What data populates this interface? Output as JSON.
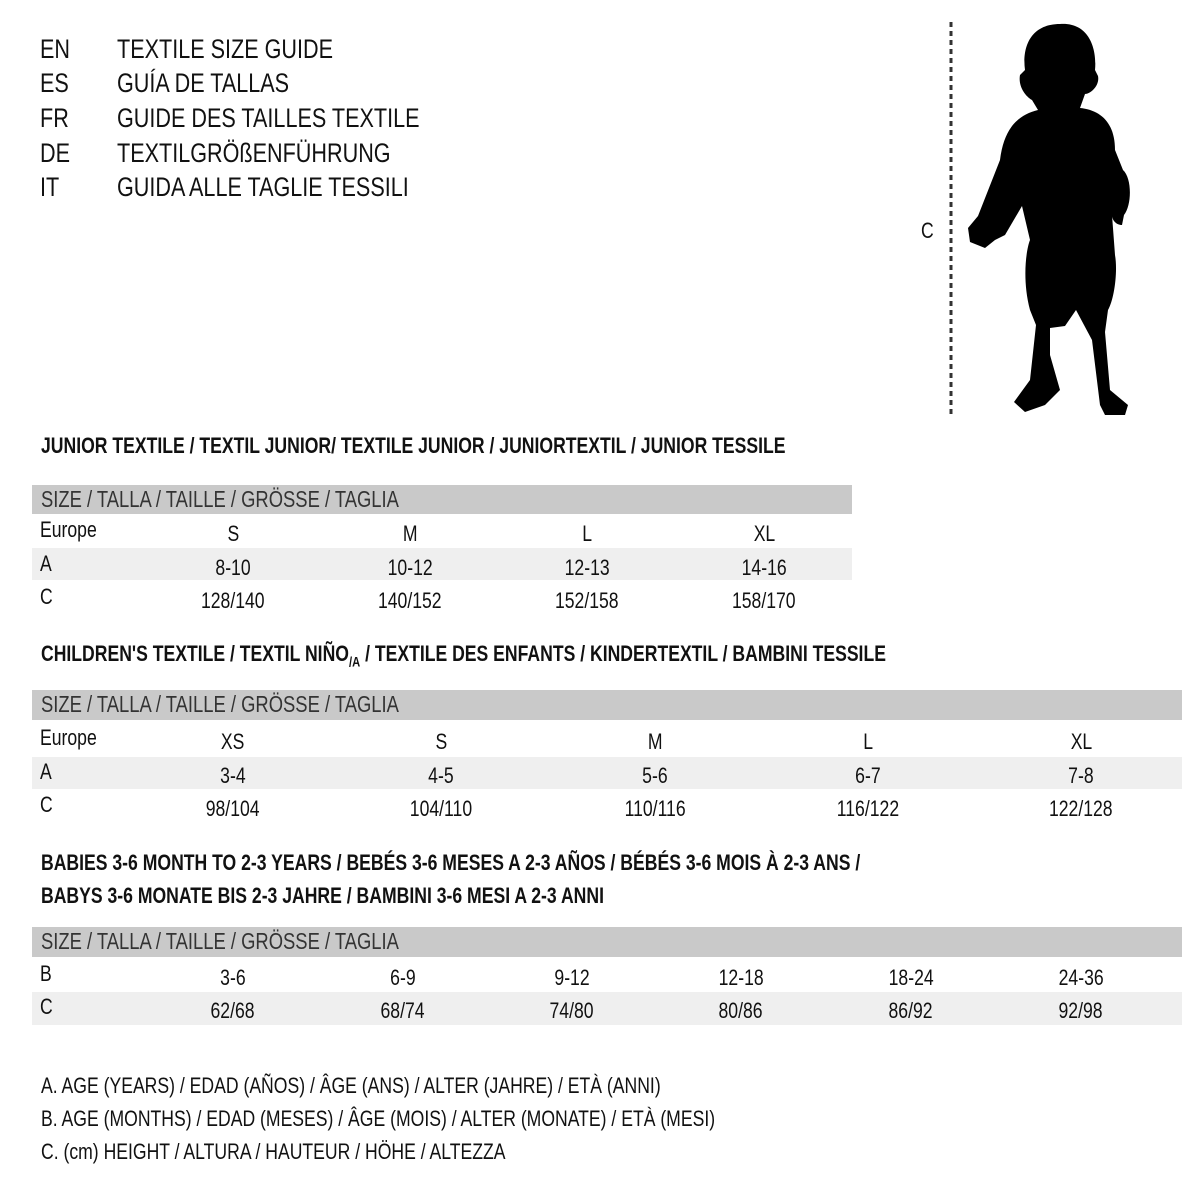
{
  "titles": [
    {
      "code": "EN",
      "text": "TEXTILE SIZE GUIDE"
    },
    {
      "code": "ES",
      "text": "GUÍA DE TALLAS"
    },
    {
      "code": "FR",
      "text": "GUIDE DES TAILLES TEXTILE"
    },
    {
      "code": "DE",
      "text": "TEXTILGRÖßENFÜHRUNG"
    },
    {
      "code": "IT",
      "text": "GUIDA ALLE TAGLIE TESSILI"
    }
  ],
  "figure": {
    "label": "C",
    "icon": "child-silhouette-icon"
  },
  "size_header": "SIZE / TALLA / TAILLE / GRÖSSE / TAGLIA",
  "junior": {
    "heading": "JUNIOR TEXTILE / TEXTIL JUNIOR/ TEXTILE JUNIOR / JUNIORTEXTIL / JUNIOR TESSILE",
    "rows": [
      {
        "label": "Europe",
        "values": [
          "S",
          "M",
          "L",
          "XL"
        ]
      },
      {
        "label": "A",
        "values": [
          "8-10",
          "10-12",
          "12-13",
          "14-16"
        ]
      },
      {
        "label": "C",
        "values": [
          "128/140",
          "140/152",
          "152/158",
          "158/170"
        ]
      }
    ]
  },
  "children": {
    "heading_pre": "CHILDREN'S TEXTILE / TEXTIL NIÑO",
    "heading_sub": "/A",
    "heading_post": " / TEXTILE DES ENFANTS / KINDERTEXTIL / BAMBINI TESSILE",
    "rows": [
      {
        "label": "Europe",
        "values": [
          "XS",
          "S",
          "M",
          "L",
          "XL"
        ]
      },
      {
        "label": "A",
        "values": [
          "3-4",
          "4-5",
          "5-6",
          "6-7",
          "7-8"
        ]
      },
      {
        "label": "C",
        "values": [
          "98/104",
          "104/110",
          "110/116",
          "116/122",
          "122/128"
        ]
      }
    ]
  },
  "babies": {
    "heading_line1": "BABIES 3-6 MONTH TO 2-3 YEARS / BEBÉS 3-6 MESES A 2-3 AÑOS / BÉBÉS 3-6 MOIS À 2-3 ANS /",
    "heading_line2": "BABYS 3-6 MONATE BIS 2-3 JAHRE / BAMBINI 3-6 MESI A 2-3 ANNI",
    "rows": [
      {
        "label": "B",
        "values": [
          "3-6",
          "6-9",
          "9-12",
          "12-18",
          "18-24",
          "24-36"
        ]
      },
      {
        "label": "C",
        "values": [
          "62/68",
          "68/74",
          "74/80",
          "80/86",
          "86/92",
          "92/98"
        ]
      }
    ]
  },
  "legend": [
    "A. AGE (YEARS) / EDAD (AÑOS) / ÂGE (ANS) / ALTER (JAHRE) / ETÀ (ANNI)",
    "B. AGE (MONTHS) / EDAD (MESES) / ÂGE (MOIS) / ALTER (MONATE) / ETÀ (MESI)",
    "C. (cm) HEIGHT / ALTURA / HAUTEUR / HÖHE / ALTEZZA"
  ],
  "colors": {
    "header_bar": "#c9c9c9",
    "alt_row": "#efefef"
  }
}
